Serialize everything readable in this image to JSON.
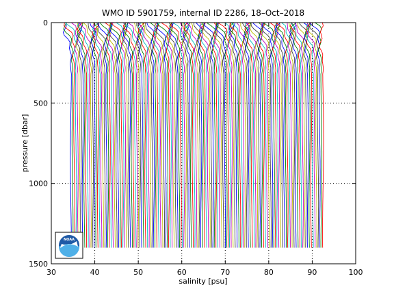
{
  "chart_data": {
    "type": "line",
    "title": "WMO ID 5901759, internal ID 2286, 18–Oct–2018",
    "xlabel": "salinity [psu]",
    "ylabel": "pressure [dbar]",
    "xlim": [
      30,
      100
    ],
    "ylim": [
      0,
      1500
    ],
    "y_reversed": true,
    "xticks": [
      30,
      40,
      50,
      60,
      70,
      80,
      90,
      100
    ],
    "yticks": [
      0,
      500,
      1000,
      1500
    ],
    "grid": {
      "y_dotted_at": [
        500,
        1000
      ],
      "x_dotted_at": [
        40,
        50,
        60,
        70,
        80,
        90
      ]
    },
    "profile_style": "waterfall (successive profiles offset in salinity)",
    "profile_count": 150,
    "x_first_deep": 34.5,
    "x_last_deep": 92.5,
    "series_colors": [
      "#0000ff",
      "#008000",
      "#ff0000",
      "#00bfbf",
      "#bf00bf",
      "#bfbf00",
      "#404040"
    ],
    "logo": "noaa-logo"
  }
}
